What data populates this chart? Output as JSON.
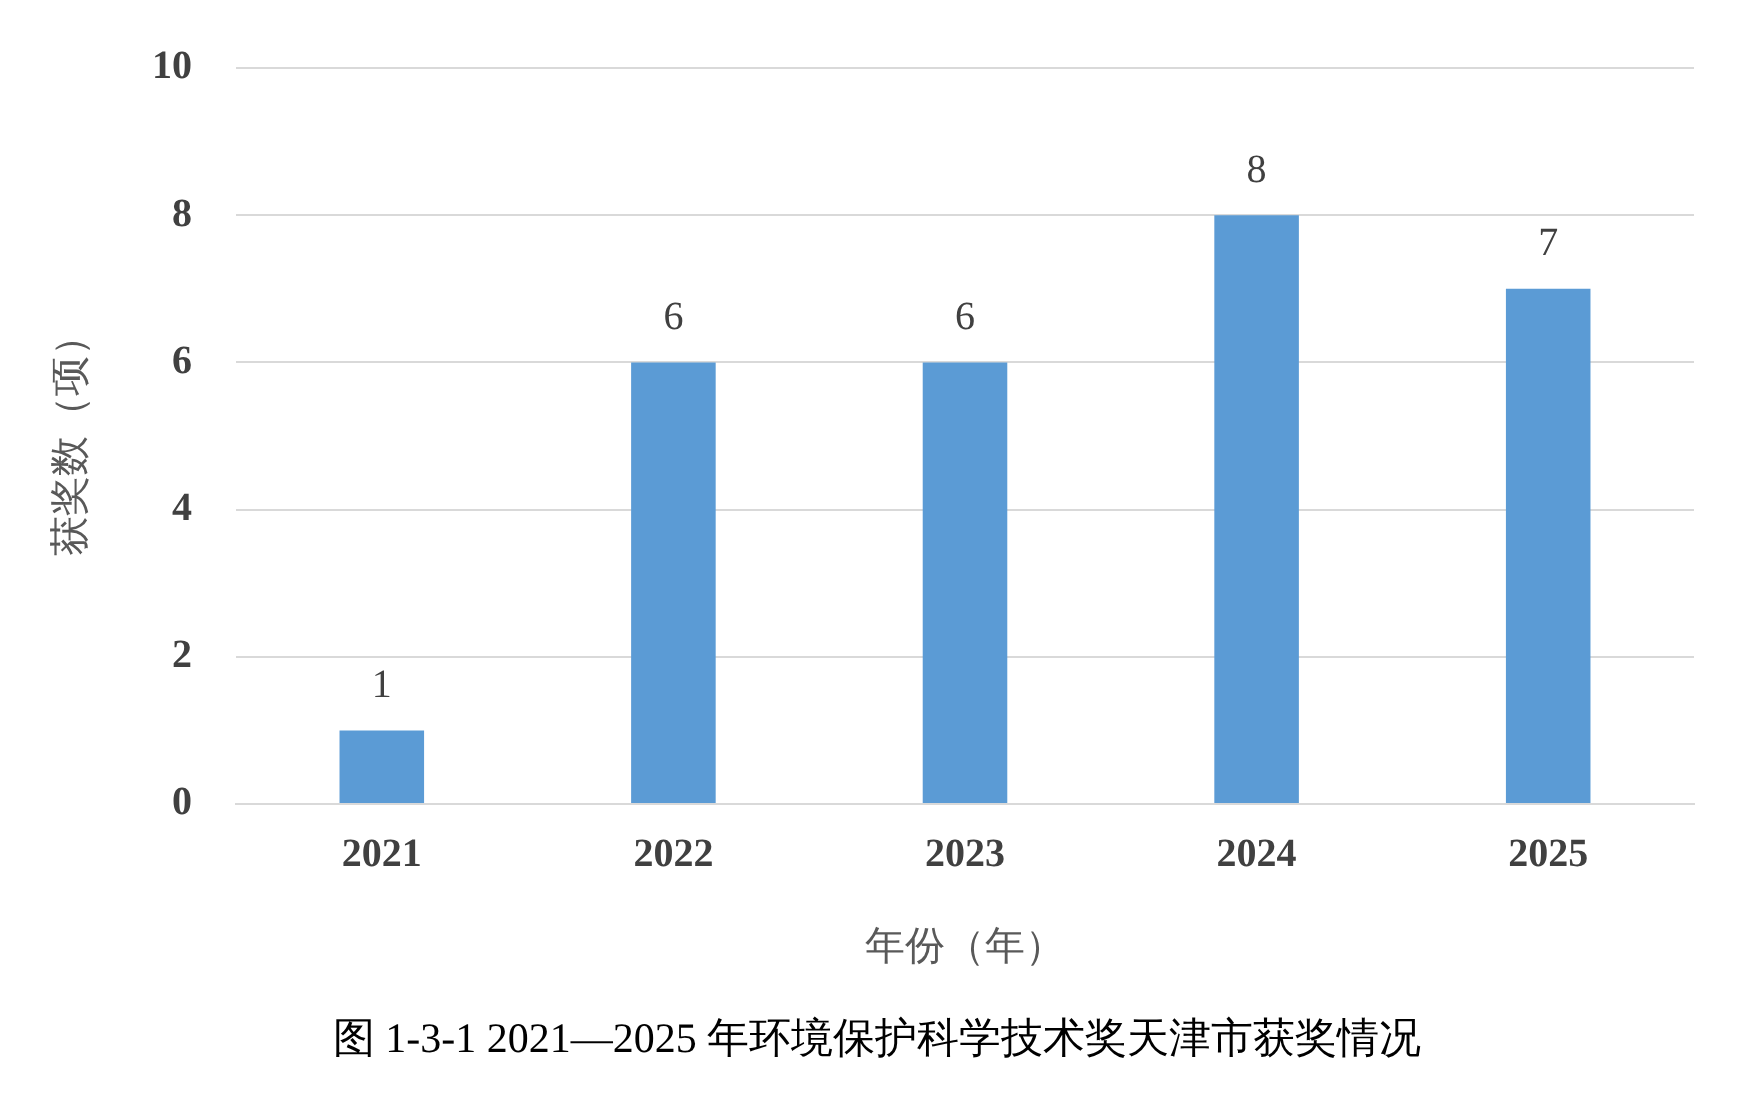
{
  "chart_data": {
    "type": "bar",
    "categories": [
      "2021",
      "2022",
      "2023",
      "2024",
      "2025"
    ],
    "values": [
      1,
      6,
      6,
      8,
      7
    ],
    "color": "#5b9bd5",
    "xlabel": "年份（年）",
    "ylabel": "获奖数（项）",
    "ylim": [
      0,
      10
    ],
    "yticks": [
      0,
      2,
      4,
      6,
      8,
      10
    ],
    "grid": "y",
    "data_labels": true,
    "legend": false,
    "annotations": [
      "图 1-3-1 2021—2025 年环境保护科学技术奖天津市获奖情况"
    ]
  }
}
